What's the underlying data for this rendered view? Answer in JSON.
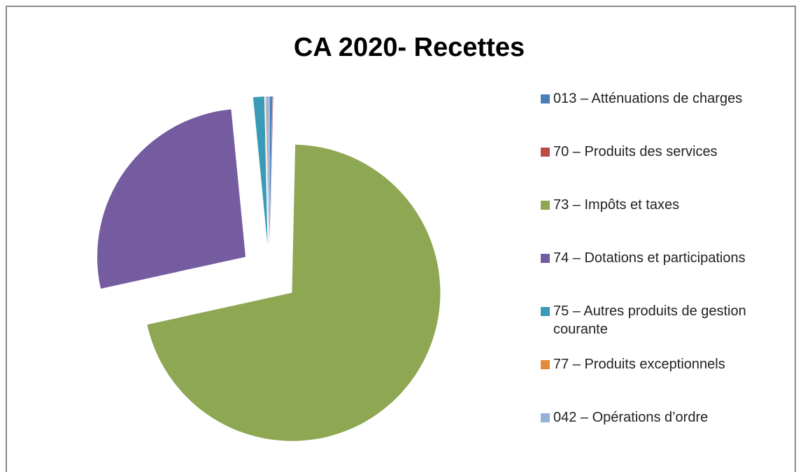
{
  "chart_data": {
    "type": "pie",
    "title": "CA 2020- Recettes",
    "categories": [
      "013 – Atténuations de charges",
      "70 – Produits des services",
      "73 – Impôts et taxes",
      "74 – Dotations et participations",
      "75 – Autres produits de gestion courante",
      "77 – Produits exceptionnels",
      "042 – Opérations d’ordre"
    ],
    "values": [
      0.3,
      0.05,
      71.2,
      26.9,
      1.2,
      0.05,
      0.3
    ],
    "colors": [
      "#4a7ebb",
      "#be4b48",
      "#8da753",
      "#755ba0",
      "#3a9bb8",
      "#e48a38",
      "#95b3d7"
    ],
    "legend": "right"
  }
}
